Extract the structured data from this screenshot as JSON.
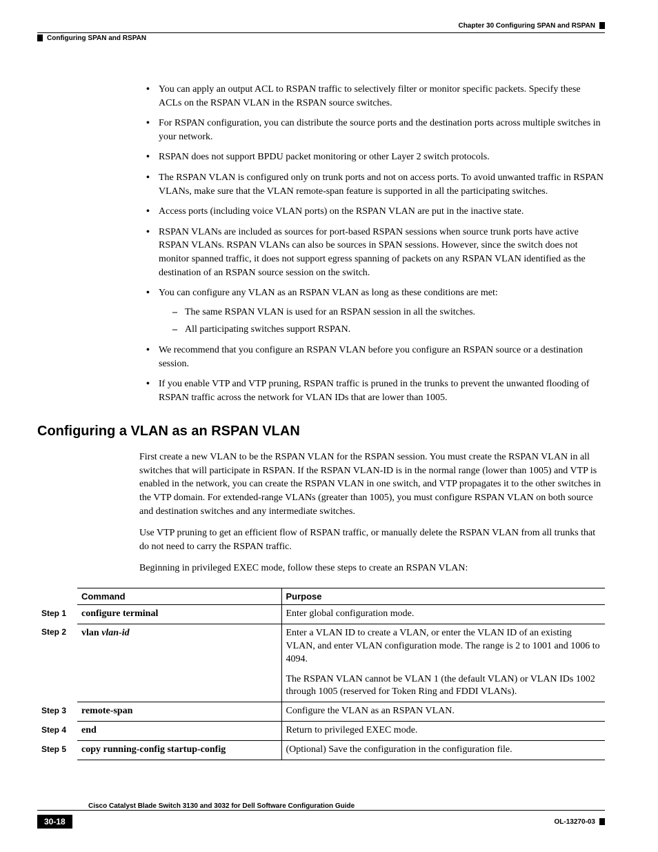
{
  "header": {
    "chapter": "Chapter 30    Configuring SPAN and RSPAN",
    "section": "Configuring SPAN and RSPAN"
  },
  "bullets": [
    "You can apply an output ACL to RSPAN traffic to selectively filter or monitor specific packets. Specify these ACLs on the RSPAN VLAN in the RSPAN source switches.",
    "For RSPAN configuration, you can distribute the source ports and the destination ports across multiple switches in your network.",
    "RSPAN does not support BPDU packet monitoring or other Layer 2 switch protocols.",
    "The RSPAN VLAN is configured only on trunk ports and not on access ports. To avoid unwanted traffic in RSPAN VLANs, make sure that the VLAN remote-span feature is supported in all the participating switches.",
    "Access ports (including voice VLAN ports) on the RSPAN VLAN are put in the inactive state.",
    "RSPAN VLANs are included as sources for port-based RSPAN sessions when source trunk ports have active RSPAN VLANs. RSPAN VLANs can also be sources in SPAN sessions. However, since the switch does not monitor spanned traffic, it does not support egress spanning of packets on any RSPAN VLAN identified as the destination of an RSPAN source session on the switch.",
    "You can configure any VLAN as an RSPAN VLAN as long as these conditions are met:",
    "We recommend that you configure an RSPAN VLAN before you configure an RSPAN source or a destination session.",
    "If you enable VTP and VTP pruning, RSPAN traffic is pruned in the trunks to prevent the unwanted flooding of RSPAN traffic across the network for VLAN IDs that are lower than 1005."
  ],
  "sub_bullets": [
    "The same RSPAN VLAN is used for an RSPAN session in all the switches.",
    "All participating switches support RSPAN."
  ],
  "heading": "Configuring a VLAN as an RSPAN VLAN",
  "paras": [
    "First create a new VLAN to be the RSPAN VLAN for the RSPAN session. You must create the RSPAN VLAN in all switches that will participate in RSPAN. If the RSPAN VLAN-ID is in the normal range (lower than 1005) and VTP is enabled in the network, you can create the RSPAN VLAN in one switch, and VTP propagates it to the other switches in the VTP domain. For extended-range VLANs (greater than 1005), you must configure RSPAN VLAN on both source and destination switches and any intermediate switches.",
    "Use VTP pruning to get an efficient flow of RSPAN traffic, or manually delete the RSPAN VLAN from all trunks that do not need to carry the RSPAN traffic.",
    "Beginning in privileged EXEC mode, follow these steps to create an RSPAN VLAN:"
  ],
  "table": {
    "headers": {
      "command": "Command",
      "purpose": "Purpose"
    },
    "rows": [
      {
        "step": "Step 1",
        "cmd": "configure terminal",
        "arg": "",
        "purpose": [
          "Enter global configuration mode."
        ]
      },
      {
        "step": "Step 2",
        "cmd": "vlan",
        "arg": "vlan-id",
        "purpose": [
          "Enter a VLAN ID to create a VLAN, or enter the VLAN ID of an existing VLAN, and enter VLAN configuration mode. The range is 2 to 1001 and 1006 to 4094.",
          "The RSPAN VLAN cannot be VLAN 1 (the default VLAN) or VLAN IDs 1002 through 1005 (reserved for Token Ring and FDDI VLANs)."
        ]
      },
      {
        "step": "Step 3",
        "cmd": "remote-span",
        "arg": "",
        "purpose": [
          "Configure the VLAN as an RSPAN VLAN."
        ]
      },
      {
        "step": "Step 4",
        "cmd": "end",
        "arg": "",
        "purpose": [
          "Return to privileged EXEC mode."
        ]
      },
      {
        "step": "Step 5",
        "cmd": "copy running-config startup-config",
        "arg": "",
        "purpose": [
          "(Optional) Save the configuration in the configuration file."
        ]
      }
    ]
  },
  "footer": {
    "title": "Cisco Catalyst Blade Switch 3130 and 3032 for Dell Software Configuration Guide",
    "page": "30-18",
    "docid": "OL-13270-03"
  }
}
